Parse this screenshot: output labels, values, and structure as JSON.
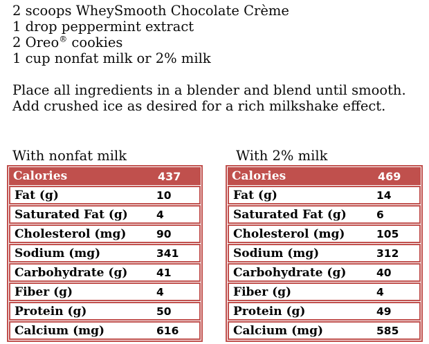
{
  "recipe": {
    "ingredients": [
      "2 scoops WheySmooth Chocolate Crème",
      "1 drop peppermint extract",
      "2 Oreo® cookies",
      "1 cup nonfat milk or 2% milk"
    ],
    "instructions": [
      "Place all ingredients in a blender and blend until smooth.",
      "Add crushed ice as desired for a rich milkshake effect."
    ]
  },
  "nutrition_tables": [
    {
      "title": "With nonfat milk",
      "header": {
        "label": "Calories",
        "value": "437"
      },
      "rows": [
        {
          "label": "Fat (g)",
          "value": "10"
        },
        {
          "label": "Saturated Fat (g)",
          "value": "4"
        },
        {
          "label": "Cholesterol (mg)",
          "value": "90"
        },
        {
          "label": "Sodium (mg)",
          "value": "341"
        },
        {
          "label": "Carbohydrate (g)",
          "value": "41"
        },
        {
          "label": "Fiber (g)",
          "value": "4"
        },
        {
          "label": "Protein (g)",
          "value": "50"
        },
        {
          "label": "Calcium (mg)",
          "value": "616"
        }
      ]
    },
    {
      "title": "With 2% milk",
      "header": {
        "label": "Calories",
        "value": "469"
      },
      "rows": [
        {
          "label": "Fat (g)",
          "value": "14"
        },
        {
          "label": "Saturated Fat (g)",
          "value": "6"
        },
        {
          "label": "Cholesterol (mg)",
          "value": "105"
        },
        {
          "label": "Sodium (mg)",
          "value": "312"
        },
        {
          "label": "Carbohydrate (g)",
          "value": "40"
        },
        {
          "label": "Fiber (g)",
          "value": "4"
        },
        {
          "label": "Protein (g)",
          "value": "49"
        },
        {
          "label": "Calcium (mg)",
          "value": "585"
        }
      ]
    }
  ],
  "colors": {
    "accent": "#C0504D",
    "header_text": "#FFFFFF",
    "body_text": "#000000"
  }
}
